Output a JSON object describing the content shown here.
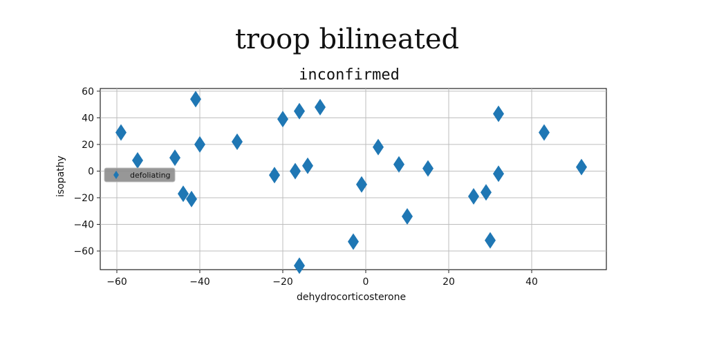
{
  "figure_title": "troop bilineated",
  "chart_data": {
    "type": "scatter",
    "title": "inconfirmed",
    "xlabel": "dehydrocorticosterone",
    "ylabel": "isopathy",
    "xlim": [
      -64,
      58
    ],
    "ylim": [
      -74,
      62
    ],
    "xticks": [
      -60,
      -40,
      -20,
      0,
      20,
      40
    ],
    "yticks": [
      60,
      40,
      20,
      0,
      -20,
      -40,
      -60
    ],
    "xtick_labels": [
      "−60",
      "−40",
      "−20",
      "0",
      "20",
      "40"
    ],
    "ytick_labels": [
      "60",
      "40",
      "20",
      "0",
      "−20",
      "−40",
      "−60"
    ],
    "grid": true,
    "legend": {
      "position": "center-left",
      "entries": [
        "defoliating"
      ]
    },
    "marker": "diamond",
    "series": [
      {
        "name": "defoliating",
        "color": "#1f77b4",
        "points": [
          [
            -59,
            29
          ],
          [
            -55,
            8
          ],
          [
            -46,
            10
          ],
          [
            -44,
            -17
          ],
          [
            -42,
            -21
          ],
          [
            -41,
            54
          ],
          [
            -40,
            20
          ],
          [
            -31,
            22
          ],
          [
            -22,
            -3
          ],
          [
            -20,
            39
          ],
          [
            -17,
            0
          ],
          [
            -16,
            45
          ],
          [
            -14,
            4
          ],
          [
            -11,
            48
          ],
          [
            -16,
            -71
          ],
          [
            -3,
            -53
          ],
          [
            -1,
            -10
          ],
          [
            3,
            18
          ],
          [
            8,
            5
          ],
          [
            10,
            -34
          ],
          [
            15,
            2
          ],
          [
            26,
            -19
          ],
          [
            29,
            -16
          ],
          [
            30,
            -52
          ],
          [
            32,
            -2
          ],
          [
            32,
            43
          ],
          [
            43,
            29
          ],
          [
            52,
            3
          ]
        ]
      }
    ]
  }
}
